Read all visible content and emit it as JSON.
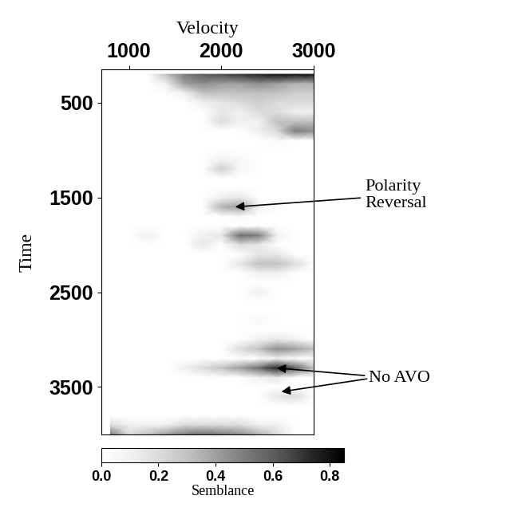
{
  "chart_data": {
    "type": "heatmap",
    "x_label": "Velocity",
    "y_label": "Time",
    "x": [
      800,
      1000,
      1200,
      1400,
      1600,
      1800,
      2000,
      2200,
      2400,
      2600,
      2800,
      3000
    ],
    "y": [
      200,
      300,
      400,
      500,
      600,
      700,
      800,
      900,
      1000,
      1100,
      1200,
      1300,
      1400,
      1500,
      1600,
      1700,
      1800,
      1900,
      2000,
      2100,
      2200,
      2300,
      2400,
      2500,
      2600,
      2700,
      2800,
      2900,
      3000,
      3100,
      3200,
      3300,
      3400,
      3500,
      3600,
      3700,
      3800,
      3900,
      4000
    ],
    "cells": [
      [
        0,
        0,
        0,
        0.3,
        0.5,
        0.6,
        0.65,
        0.7,
        0.75,
        0.8,
        0.8,
        0.8
      ],
      [
        0,
        0,
        0,
        0.1,
        0.4,
        0.45,
        0.4,
        0.4,
        0.45,
        0.4,
        0.35,
        0.35
      ],
      [
        0,
        0,
        0,
        0,
        0.1,
        0.3,
        0.3,
        0.3,
        0.3,
        0.3,
        0.25,
        0.25
      ],
      [
        0,
        0,
        0,
        0,
        0,
        0.1,
        0.15,
        0.2,
        0.25,
        0.2,
        0.2,
        0.2
      ],
      [
        0,
        0,
        0,
        0,
        0,
        0,
        0.15,
        0.1,
        0.2,
        0.2,
        0.1,
        0.1
      ],
      [
        0,
        0,
        0,
        0,
        0,
        0,
        0.2,
        0.1,
        0.1,
        0.3,
        0.3,
        0.3
      ],
      [
        0,
        0,
        0,
        0,
        0,
        0,
        0,
        0,
        0.1,
        0.2,
        0.5,
        0.45
      ],
      [
        0,
        0,
        0,
        0,
        0,
        0,
        0,
        0,
        0,
        0.05,
        0,
        0
      ],
      [
        0,
        0,
        0,
        0,
        0,
        0,
        0,
        0,
        0,
        0,
        0,
        0
      ],
      [
        0,
        0,
        0,
        0,
        0,
        0,
        0.1,
        0.05,
        0,
        0,
        0,
        0
      ],
      [
        0,
        0,
        0,
        0,
        0,
        0,
        0.25,
        0.05,
        0,
        0,
        0,
        0
      ],
      [
        0,
        0,
        0,
        0,
        0,
        0,
        0,
        0,
        0,
        0,
        0,
        0
      ],
      [
        0,
        0,
        0,
        0,
        0,
        0,
        0,
        0,
        0,
        0,
        0,
        0
      ],
      [
        0,
        0,
        0,
        0,
        0,
        0,
        0.1,
        0.15,
        0,
        0,
        0,
        0
      ],
      [
        0,
        0,
        0,
        0,
        0,
        0,
        0.35,
        0.4,
        0.1,
        0,
        0,
        0
      ],
      [
        0,
        0,
        0,
        0,
        0,
        0,
        0,
        0.05,
        0,
        0,
        0,
        0
      ],
      [
        0,
        0,
        0,
        0,
        0,
        0,
        0,
        0,
        0,
        0,
        0,
        0
      ],
      [
        0,
        0,
        0.1,
        0,
        0,
        0.1,
        0.15,
        0.55,
        0.5,
        0.1,
        0,
        0
      ],
      [
        0,
        0,
        0,
        0,
        0,
        0.15,
        0,
        0.2,
        0.15,
        0,
        0,
        0
      ],
      [
        0,
        0,
        0,
        0,
        0,
        0,
        0,
        0,
        0.15,
        0.15,
        0,
        0
      ],
      [
        0,
        0,
        0,
        0,
        0,
        0,
        0,
        0.15,
        0.3,
        0.3,
        0.2,
        0
      ],
      [
        0,
        0,
        0,
        0,
        0,
        0,
        0,
        0,
        0.1,
        0.1,
        0,
        0
      ],
      [
        0,
        0,
        0,
        0,
        0,
        0,
        0,
        0,
        0,
        0,
        0,
        0
      ],
      [
        0,
        0,
        0,
        0,
        0,
        0,
        0,
        0,
        0.1,
        0,
        0,
        0
      ],
      [
        0,
        0,
        0,
        0,
        0,
        0,
        0,
        0,
        0,
        0,
        0,
        0
      ],
      [
        0,
        0,
        0,
        0,
        0,
        0,
        0,
        0,
        0,
        0,
        0,
        0
      ],
      [
        0,
        0,
        0,
        0,
        0,
        0,
        0,
        0,
        0.05,
        0,
        0,
        0
      ],
      [
        0,
        0,
        0,
        0,
        0,
        0,
        0,
        0,
        0,
        0,
        0,
        0
      ],
      [
        0,
        0,
        0,
        0,
        0,
        0,
        0,
        0,
        0.1,
        0.15,
        0.1,
        0
      ],
      [
        0,
        0,
        0,
        0,
        0,
        0,
        0,
        0.2,
        0.3,
        0.45,
        0.4,
        0.3
      ],
      [
        0,
        0,
        0,
        0,
        0,
        0,
        0,
        0,
        0,
        0.1,
        0,
        0
      ],
      [
        0,
        0,
        0,
        0,
        0.1,
        0.2,
        0.3,
        0.4,
        0.55,
        0.75,
        0.6,
        0.3
      ],
      [
        0,
        0,
        0,
        0,
        0,
        0,
        0,
        0,
        0.1,
        0.15,
        0,
        0
      ],
      [
        0,
        0,
        0,
        0,
        0,
        0,
        0,
        0,
        0,
        0,
        0,
        0
      ],
      [
        0,
        0,
        0,
        0,
        0,
        0,
        0,
        0,
        0,
        0.15,
        0.2,
        0
      ],
      [
        0,
        0,
        0,
        0,
        0,
        0,
        0,
        0,
        0,
        0,
        0,
        0
      ],
      [
        0,
        0,
        0,
        0,
        0,
        0,
        0,
        0,
        0,
        0,
        0,
        0
      ],
      [
        0.2,
        0.1,
        0.1,
        0.1,
        0.2,
        0.2,
        0.2,
        0.2,
        0.1,
        0.1,
        0,
        0
      ],
      [
        0.5,
        0.2,
        0.3,
        0.4,
        0.5,
        0.55,
        0.5,
        0.45,
        0.35,
        0.2,
        0,
        0
      ]
    ],
    "xlim": [
      700,
      3000
    ],
    "xticks": [
      1000,
      2000,
      3000
    ],
    "ylim": [
      4000,
      150
    ],
    "yticks": [
      500,
      1500,
      2500,
      3500
    ],
    "colorbar": {
      "label": "Semblance",
      "range": [
        0,
        0.85
      ],
      "ticks": [
        {
          "value": 0,
          "label": "0.0"
        },
        {
          "value": 0.2,
          "label": "0.2"
        },
        {
          "value": 0.4,
          "label": "0.4"
        },
        {
          "value": 0.6,
          "label": "0.6"
        },
        {
          "value": 0.8,
          "label": "0.8"
        }
      ]
    },
    "annotations": [
      {
        "text": "Polarity\nReversal",
        "targets": [
          [
            2150,
            1600
          ]
        ]
      },
      {
        "text": "No AVO",
        "targets": [
          [
            2600,
            3300
          ],
          [
            2650,
            3550
          ]
        ]
      }
    ]
  }
}
